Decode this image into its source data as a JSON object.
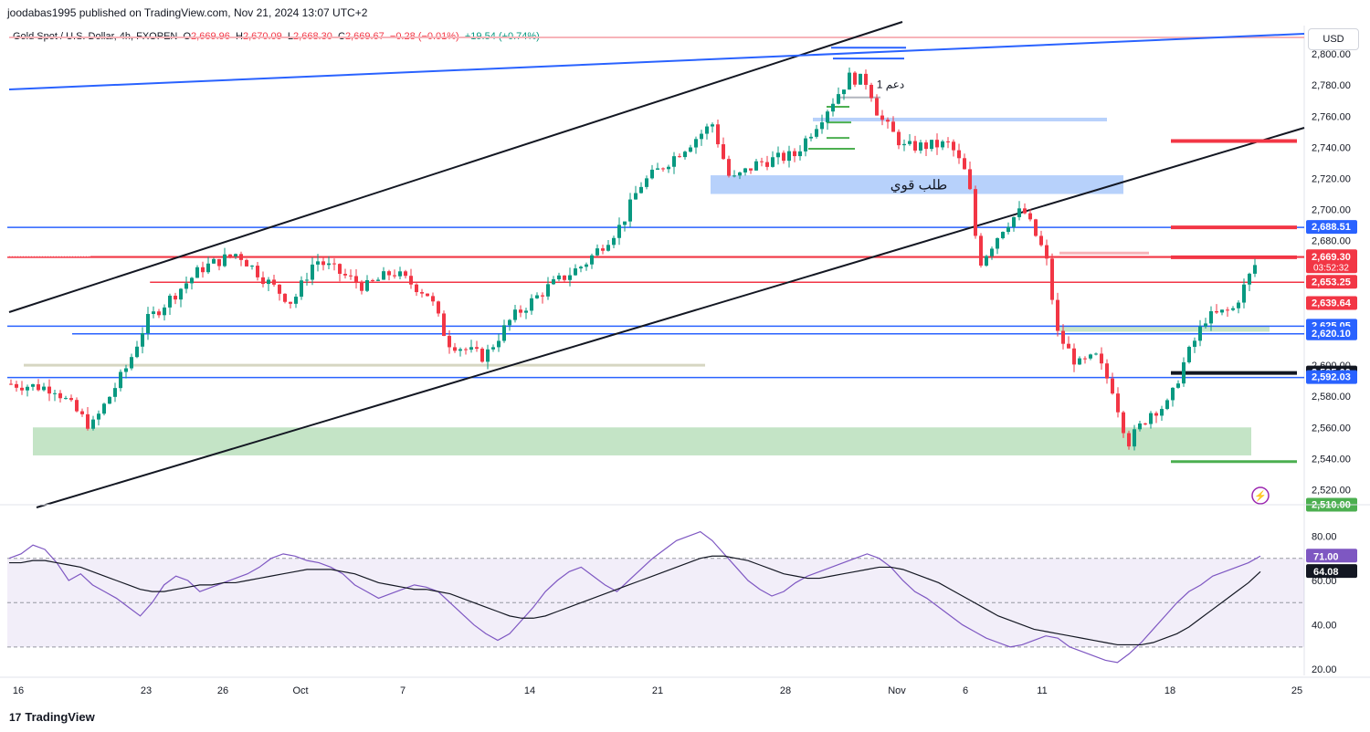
{
  "publisher_line": "joodabas1995 published on TradingView.com, Nov 21, 2024 13:07 UTC+2",
  "symbol": {
    "name": "Gold Spot / U.S. Dollar, 4h, FXOPEN",
    "o_label": "O",
    "o": "2,669.96",
    "h_label": "H",
    "h": "2,670.09",
    "l_label": "L",
    "l": "2,668.30",
    "c_label": "C",
    "c": "2,669.67",
    "change": "−0.28 (−0.01%)",
    "volume_change": "+19.54 (+0.74%)"
  },
  "currency_button": "USD",
  "footer_brand": "TradingView",
  "footer_logo": "17",
  "colors": {
    "up": "#089981",
    "down": "#f23645",
    "blue_line": "#2962ff",
    "red_line": "#f23645",
    "demand_zone": "#4c8df6",
    "green_zone": "#a5d6a7",
    "rsi": "#7e57c2"
  },
  "annotations": {
    "strong_demand": "طلب قوي",
    "support_1": "دعم 1"
  },
  "chart_data": {
    "type": "candlestick",
    "x_ticks": [
      "16",
      "23",
      "26",
      "Oct",
      "7",
      "14",
      "21",
      "28",
      "Nov",
      "6",
      "11",
      "18",
      "25"
    ],
    "y_ticks": [
      "2,800.00",
      "2,780.00",
      "2,760.00",
      "2,740.00",
      "2,720.00",
      "2,700.00",
      "2,680.00",
      "2,600.00",
      "2,580.00",
      "2,560.00",
      "2,540.00",
      "2,520.00"
    ],
    "ylim": [
      2515,
      2810
    ],
    "price_labels": [
      {
        "value": "2,688.51",
        "color": "#2962ff",
        "text_color": "#ffffff"
      },
      {
        "value": "2,669.67",
        "color": "#f23645",
        "text_color": "#ffffff",
        "sub": "03:52:32"
      },
      {
        "value": "2,669.30",
        "color": "#f23645",
        "text_color": "#ffffff"
      },
      {
        "value": "2,653.25",
        "color": "#f23645",
        "text_color": "#ffffff"
      },
      {
        "value": "2,639.64",
        "color": "#f23645",
        "text_color": "#ffffff"
      },
      {
        "value": "2,625.05",
        "color": "#2962ff",
        "text_color": "#ffffff"
      },
      {
        "value": "2,620.10",
        "color": "#2962ff",
        "text_color": "#ffffff"
      },
      {
        "value": "2,595.00",
        "color": "#131722",
        "text_color": "#ffffff"
      },
      {
        "value": "2,592.03",
        "color": "#2962ff",
        "text_color": "#ffffff"
      },
      {
        "value": "2,510.00",
        "color": "#4caf50",
        "text_color": "#ffffff"
      }
    ],
    "horizontal_lines": [
      {
        "value": 2688.51,
        "color": "#2962ff",
        "from_pct": 0
      },
      {
        "value": 2669.67,
        "color": "#f23645",
        "from_pct": 0.064
      },
      {
        "value": 2669.3,
        "color": "#f23645",
        "from_pct": 0
      },
      {
        "value": 2653.25,
        "color": "#f23645",
        "from_pct": 0.11
      },
      {
        "value": 2625.05,
        "color": "#2962ff",
        "from_pct": 0
      },
      {
        "value": 2620.1,
        "color": "#2962ff",
        "from_pct": 0.05
      },
      {
        "value": 2592.03,
        "color": "#2962ff",
        "from_pct": 0
      }
    ],
    "rsi": {
      "y_ticks": [
        "80.00",
        "60.00",
        "40.00",
        "20.00"
      ],
      "ylim": [
        18,
        88
      ],
      "upper_band": 70,
      "lower_band": 30,
      "mid": 50,
      "rsi_label": "71.00",
      "ma_label": "64.08",
      "rsi_values": [
        70,
        72,
        76,
        74,
        68,
        60,
        63,
        58,
        55,
        52,
        48,
        44,
        50,
        58,
        62,
        60,
        55,
        57,
        59,
        61,
        63,
        66,
        70,
        72,
        71,
        69,
        68,
        66,
        63,
        58,
        55,
        52,
        54,
        56,
        58,
        57,
        55,
        50,
        45,
        40,
        36,
        33,
        36,
        42,
        48,
        55,
        60,
        64,
        66,
        62,
        58,
        55,
        60,
        65,
        70,
        74,
        78,
        80,
        82,
        78,
        72,
        66,
        60,
        56,
        53,
        55,
        59,
        62,
        64,
        66,
        68,
        70,
        72,
        70,
        66,
        60,
        55,
        52,
        48,
        44,
        40,
        37,
        34,
        32,
        30,
        31,
        33,
        35,
        34,
        30,
        28,
        26,
        24,
        23,
        27,
        32,
        38,
        44,
        50,
        55,
        58,
        62,
        64,
        66,
        68,
        71
      ],
      "ma_values": [
        68,
        68,
        69,
        69,
        68,
        67,
        66,
        64,
        62,
        60,
        58,
        56,
        55,
        55,
        56,
        57,
        58,
        58,
        59,
        59,
        60,
        61,
        62,
        63,
        64,
        65,
        65,
        65,
        64,
        63,
        61,
        59,
        58,
        57,
        56,
        56,
        55,
        54,
        52,
        50,
        48,
        46,
        44,
        43,
        43,
        44,
        46,
        48,
        50,
        52,
        54,
        56,
        58,
        60,
        62,
        64,
        66,
        68,
        70,
        71,
        71,
        70,
        69,
        67,
        65,
        63,
        62,
        61,
        61,
        62,
        63,
        64,
        65,
        66,
        66,
        65,
        63,
        61,
        59,
        56,
        53,
        50,
        47,
        44,
        42,
        40,
        38,
        37,
        36,
        35,
        34,
        33,
        32,
        31,
        31,
        31,
        32,
        34,
        36,
        39,
        43,
        47,
        51,
        55,
        59,
        64
      ]
    }
  }
}
